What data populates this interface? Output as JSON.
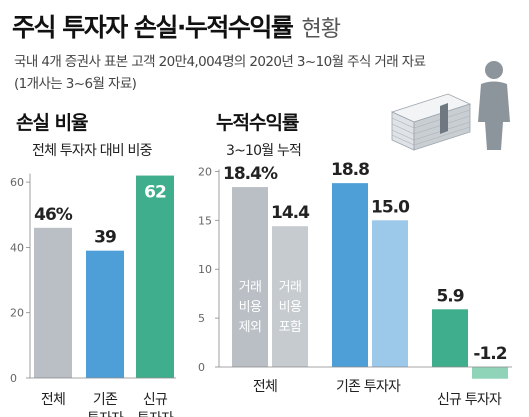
{
  "title": "주식 투자자 손실·누적수익률",
  "title_suffix": "현황",
  "note_line1": "국내 4개 증권사 표본 고객 20만4,004명의 2020년 3~10월 주식 거래 자료",
  "note_line2": "(1개사는 3~6월 자료)",
  "colors": {
    "gray": "#b9bfc5",
    "blue": "#4e9fd8",
    "teal": "#3fae8c",
    "light_blue": "#9cc8ea",
    "light_teal": "#8fd4b8"
  },
  "icon": "money-stack-and-person-icon",
  "chart_data": [
    {
      "type": "bar",
      "title": "손실 비율",
      "subtitle": "전체 투자자 대비 비중",
      "categories": [
        [
          "전체"
        ],
        [
          "기존",
          "투자자"
        ],
        [
          "신규",
          "투자자"
        ]
      ],
      "values": [
        46,
        39,
        62
      ],
      "value_labels": [
        "46%",
        "39",
        "62"
      ],
      "yticks": [
        0,
        20,
        40,
        60
      ],
      "ylim": [
        0,
        62
      ],
      "grid": false
    },
    {
      "type": "bar",
      "title": "누적수익률",
      "subtitle": "3~10월 누적",
      "categories": [
        "전체",
        "기존 투자자",
        "신규 투자자"
      ],
      "series": [
        {
          "name": "거래 비용 제외",
          "name_lines": [
            "거래",
            "비용",
            "제외"
          ],
          "values": [
            18.4,
            18.8,
            5.9
          ],
          "value_labels": [
            "18.4%",
            "18.8",
            "5.9"
          ]
        },
        {
          "name": "거래 비용 포함",
          "name_lines": [
            "거래",
            "비용",
            "포함"
          ],
          "values": [
            14.4,
            15.0,
            -1.2
          ],
          "value_labels": [
            "14.4",
            "15.0",
            "-1.2"
          ]
        }
      ],
      "yticks": [
        0,
        5,
        10,
        15,
        20
      ],
      "ylim": [
        -1.2,
        20
      ],
      "grid": false
    }
  ]
}
